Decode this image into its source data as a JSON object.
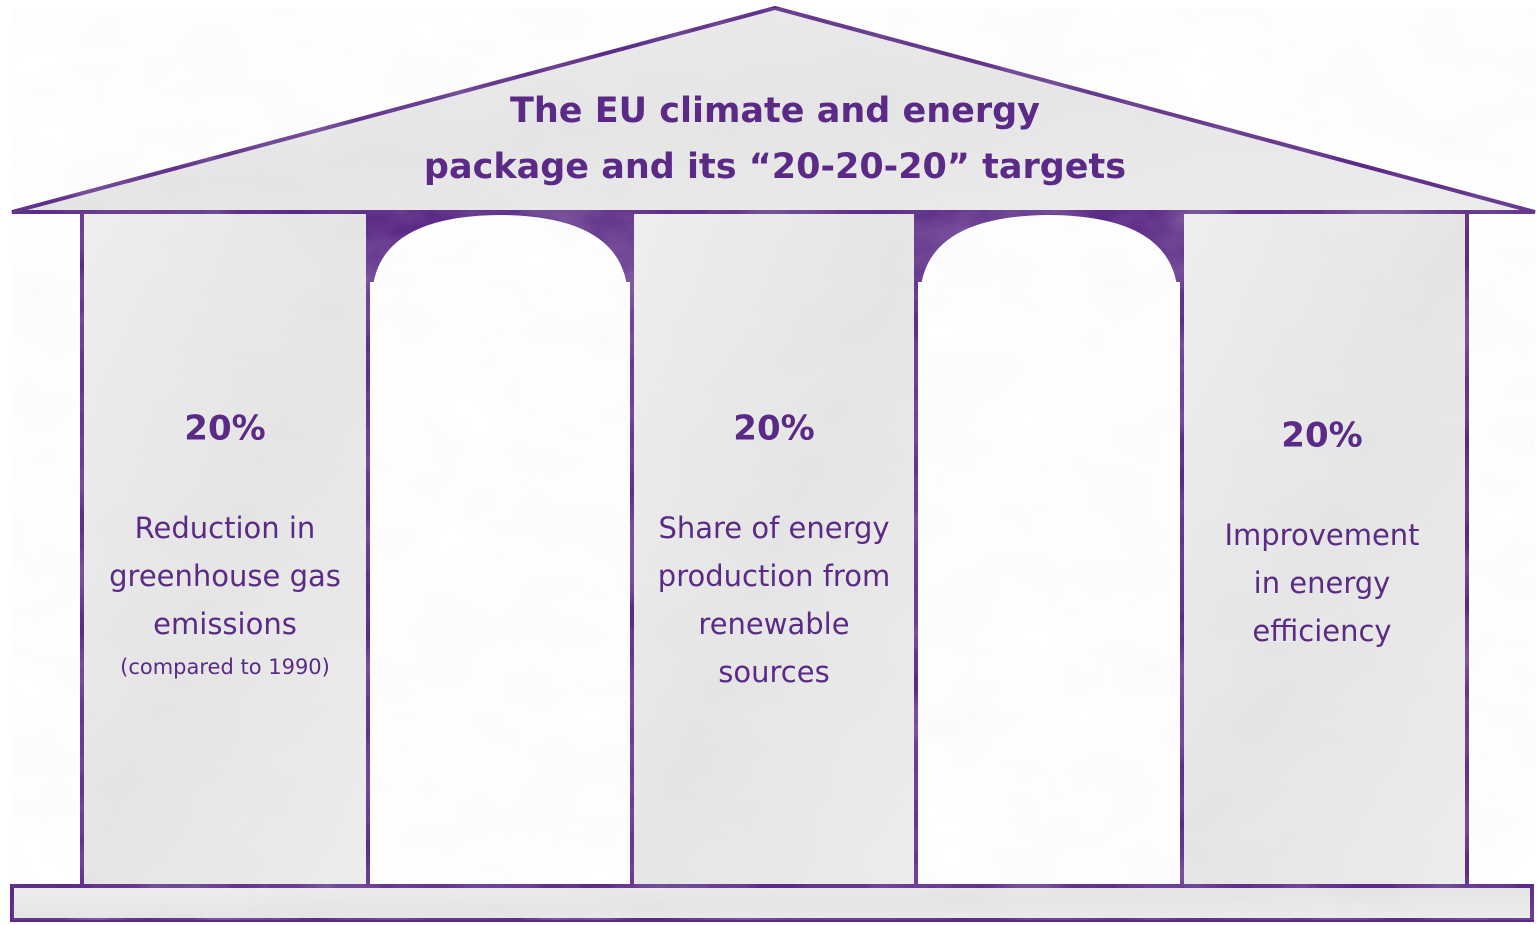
{
  "title": [
    "The EU climate and energy",
    "package and its “20-20-20” targets"
  ],
  "pillars": [
    {
      "value": "20%",
      "description": [
        "Reduction in",
        "greenhouse gas",
        "emissions"
      ],
      "note": "(compared to 1990)"
    },
    {
      "value": "20%",
      "description": [
        "Share of energy",
        "production from",
        "renewable",
        "sources"
      ]
    },
    {
      "value": "20%",
      "description": [
        "Improvement",
        "in energy",
        "efficiency"
      ]
    }
  ]
}
